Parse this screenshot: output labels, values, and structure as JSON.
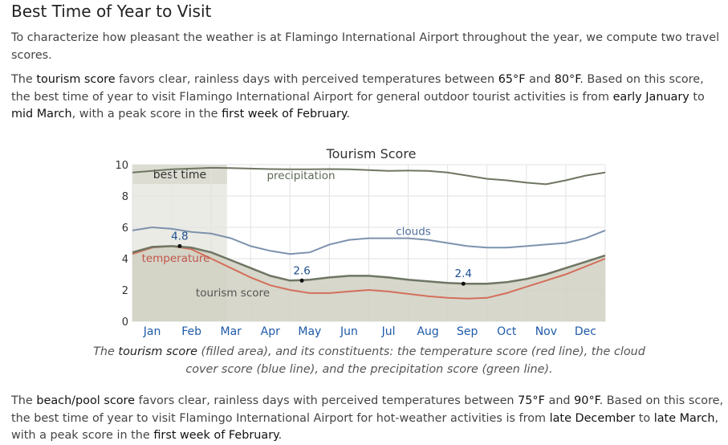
{
  "heading": "Best Time of Year to Visit",
  "intro": "To characterize how pleasant the weather is at Flamingo International Airport throughout the year, we compute two travel scores.",
  "tourism_para": {
    "t1": "The ",
    "h1": "tourism score",
    "t2": " favors clear, rainless days with perceived temperatures between ",
    "h2": "65°F",
    "t3": " and ",
    "h3": "80°F",
    "t4": ". Based on this score, the best time of year to visit Flamingo International Airport for general outdoor tourist activities is from ",
    "h4": "early January",
    "t5": " to ",
    "h5": "mid March",
    "t6": ", with a peak score in the ",
    "h6": "first week of February",
    "t7": "."
  },
  "caption": {
    "t1": "The ",
    "h1": "tourism score",
    "t2": " (filled area), and its constituents: the temperature score (red line), the cloud cover score (blue line), and the precipitation score (green line)."
  },
  "beach_para": {
    "t1": "The ",
    "h1": "beach/pool score",
    "t2": " favors clear, rainless days with perceived temperatures between ",
    "h2": "75°F",
    "t3": " and ",
    "h3": "90°F",
    "t4": ". Based on this score, the best time of year to visit Flamingo International Airport for hot-weather activities is from ",
    "h4": "late December",
    "t5": " to ",
    "h5": "late March",
    "t6": ", with a peak score in the ",
    "h6": "first week of February",
    "t7": "."
  },
  "chart_data": {
    "type": "area",
    "title": "Tourism Score",
    "ylim": [
      0,
      10
    ],
    "yticks": [
      0,
      2,
      4,
      6,
      8,
      10
    ],
    "months": [
      "Jan",
      "Feb",
      "Mar",
      "Apr",
      "May",
      "Jun",
      "Jul",
      "Aug",
      "Sep",
      "Oct",
      "Nov",
      "Dec"
    ],
    "grid": true,
    "best_time": {
      "label": "best time",
      "start_month": 0.0,
      "end_month": 2.4
    },
    "series": [
      {
        "name": "precipitation",
        "color": "#6e7663",
        "x": [
          0,
          0.5,
          1,
          1.5,
          2,
          2.5,
          3,
          3.5,
          4,
          4.5,
          5,
          5.5,
          6,
          6.5,
          7,
          7.5,
          8,
          8.5,
          9,
          9.5,
          10,
          10.5,
          11,
          11.5,
          12
        ],
        "values": [
          9.5,
          9.6,
          9.7,
          9.75,
          9.8,
          9.78,
          9.75,
          9.72,
          9.7,
          9.7,
          9.72,
          9.7,
          9.65,
          9.6,
          9.62,
          9.6,
          9.5,
          9.3,
          9.1,
          9.0,
          8.85,
          8.75,
          9.0,
          9.3,
          9.5
        ]
      },
      {
        "name": "clouds",
        "color": "#7d92ad",
        "x": [
          0,
          0.5,
          1,
          1.5,
          2,
          2.5,
          3,
          3.5,
          4,
          4.5,
          5,
          5.5,
          6,
          6.5,
          7,
          7.5,
          8,
          8.5,
          9,
          9.5,
          10,
          10.5,
          11,
          11.5,
          12
        ],
        "values": [
          5.8,
          6.0,
          5.9,
          5.7,
          5.6,
          5.3,
          4.8,
          4.5,
          4.3,
          4.4,
          4.9,
          5.2,
          5.3,
          5.3,
          5.3,
          5.2,
          5.0,
          4.8,
          4.7,
          4.7,
          4.8,
          4.9,
          5.0,
          5.3,
          5.8
        ]
      },
      {
        "name": "temperature",
        "color": "#d46f5b",
        "x": [
          0,
          0.5,
          1,
          1.5,
          2,
          2.5,
          3,
          3.5,
          4,
          4.5,
          5,
          5.5,
          6,
          6.5,
          7,
          7.5,
          8,
          8.5,
          9,
          9.5,
          10,
          10.5,
          11,
          11.5,
          12
        ],
        "values": [
          4.3,
          4.7,
          4.8,
          4.6,
          4.0,
          3.4,
          2.8,
          2.3,
          2.0,
          1.8,
          1.8,
          1.9,
          2.0,
          1.9,
          1.75,
          1.6,
          1.5,
          1.45,
          1.5,
          1.8,
          2.2,
          2.6,
          3.0,
          3.5,
          4.0
        ]
      },
      {
        "name": "tourism score",
        "color": "#6e7663",
        "fill": "#d0d0c2",
        "x": [
          0,
          0.5,
          1,
          1.5,
          2,
          2.5,
          3,
          3.5,
          4,
          4.5,
          5,
          5.5,
          6,
          6.5,
          7,
          7.5,
          8,
          8.5,
          9,
          9.5,
          10,
          10.5,
          11,
          11.5,
          12
        ],
        "values": [
          4.4,
          4.75,
          4.8,
          4.7,
          4.4,
          3.9,
          3.4,
          2.9,
          2.6,
          2.65,
          2.8,
          2.9,
          2.9,
          2.8,
          2.65,
          2.55,
          2.45,
          2.4,
          2.4,
          2.5,
          2.7,
          3.0,
          3.4,
          3.8,
          4.2
        ]
      }
    ],
    "annotations": [
      {
        "label": "4.8",
        "x": 1.2,
        "y": 4.8
      },
      {
        "label": "2.6",
        "x": 4.3,
        "y": 2.6
      },
      {
        "label": "2.4",
        "x": 8.4,
        "y": 2.4
      }
    ]
  }
}
